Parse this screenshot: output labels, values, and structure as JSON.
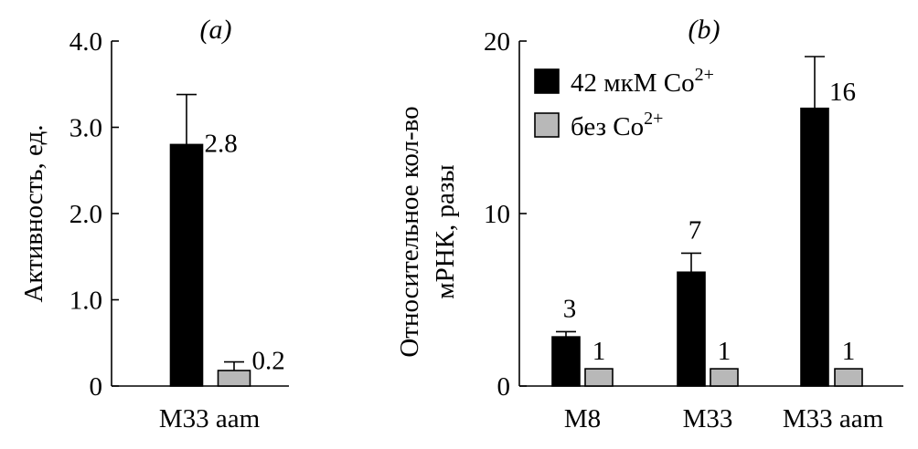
{
  "chart_data": [
    {
      "panel": "(a)",
      "type": "bar",
      "ylabel": "Активность, ед.",
      "ylim": [
        0,
        4.0
      ],
      "yticks": [
        "0",
        "1.0",
        "2.0",
        "3.0",
        "4.0"
      ],
      "ytick_values": [
        0,
        1,
        2,
        3,
        4
      ],
      "categories": [
        "M33 aam"
      ],
      "series": [
        {
          "color": "#000000",
          "values": [
            2.8
          ],
          "errors": [
            0.58
          ],
          "value_labels": [
            "2.8"
          ]
        },
        {
          "color": "#b8b8b8",
          "values": [
            0.18
          ],
          "errors": [
            0.1
          ],
          "value_labels": [
            "0.2"
          ]
        }
      ],
      "grid": false
    },
    {
      "panel": "(b)",
      "type": "bar",
      "ylabel_lines": [
        "Относительное кол-во",
        "мРНК, разы"
      ],
      "ylim": [
        0,
        20
      ],
      "yticks": [
        "0",
        "10",
        "20"
      ],
      "ytick_values": [
        0,
        10,
        20
      ],
      "categories": [
        "M8",
        "M33",
        "M33 aam"
      ],
      "legend_position": "top-left",
      "series": [
        {
          "name": "42 мкМ Co",
          "name_sup": "2+",
          "color": "#000000",
          "values": [
            2.85,
            6.6,
            16.1
          ],
          "errors": [
            0.3,
            1.1,
            3.0
          ],
          "value_labels": [
            "3",
            "7",
            "16"
          ]
        },
        {
          "name": "без Co",
          "name_sup": "2+",
          "color": "#b8b8b8",
          "values": [
            1,
            1,
            1
          ],
          "errors": [
            0,
            0,
            0
          ],
          "value_labels": [
            "1",
            "1",
            "1"
          ]
        }
      ],
      "grid": false
    }
  ]
}
